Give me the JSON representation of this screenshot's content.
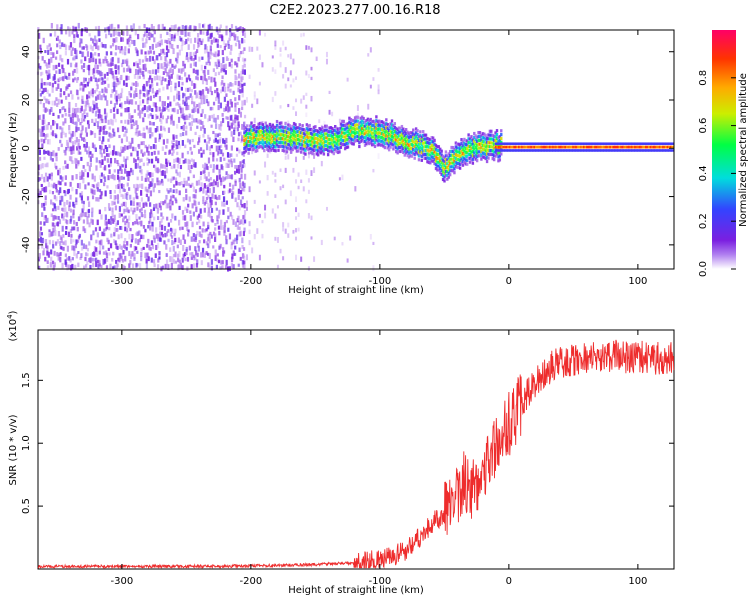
{
  "title": "C2E2.2023.277.00.16.R18",
  "colors": {
    "snr_line": "#ee2c2c",
    "spectrogram_noise": "#6a10e8",
    "spectrogram_ridge": "#00ff44",
    "axis": "#000000"
  },
  "chart_data": [
    {
      "type": "heatmap",
      "title": "C2E2.2023.277.00.16.R18",
      "xlabel": "Height of straight line (km)",
      "ylabel": "Frequency (Hz)",
      "xlim": [
        -365,
        128
      ],
      "ylim": [
        -50,
        49
      ],
      "x_ticks": [
        -300,
        -200,
        -100,
        0,
        100
      ],
      "y_ticks": [
        -40,
        -20,
        0,
        20,
        40
      ],
      "colorbar": {
        "label": "Normalized spectral amplitude",
        "range": [
          0.0,
          1.0
        ],
        "ticks": [
          0.0,
          0.2,
          0.4,
          0.6,
          0.8
        ],
        "colormap": [
          "#ffffff",
          "#7b1fe0",
          "#3344ff",
          "#00dddd",
          "#00ff44",
          "#ccee00",
          "#ffaa00",
          "#ff3300",
          "#ff0066"
        ]
      },
      "features": [
        {
          "name": "broadband noise",
          "x_range": [
            -365,
            -205
          ],
          "freq_range": [
            -50,
            49
          ],
          "amplitude": 0.1
        },
        {
          "name": "sparse noise",
          "x_range": [
            -205,
            -100
          ],
          "freq_range": [
            -50,
            49
          ],
          "amplitude": 0.05
        },
        {
          "name": "signal ridge",
          "points": [
            [
              -205,
              4
            ],
            [
              -180,
              5
            ],
            [
              -160,
              4
            ],
            [
              -140,
              3
            ],
            [
              -120,
              7
            ],
            [
              -100,
              7
            ],
            [
              -80,
              3
            ],
            [
              -60,
              0
            ],
            [
              -50,
              -8
            ],
            [
              -42,
              -4
            ],
            [
              -30,
              0
            ],
            [
              -10,
              1
            ],
            [
              0,
              1
            ],
            [
              128,
              0
            ]
          ],
          "amplitude": 0.75
        },
        {
          "name": "steady tone",
          "x_range": [
            -10,
            128
          ],
          "frequency": 0.5,
          "amplitude": 0.9
        }
      ]
    },
    {
      "type": "line",
      "xlabel": "Height of straight line (km)",
      "ylabel": "SNR (10 * v/v)",
      "y_multiplier": "(x10^4)",
      "xlim": [
        -365,
        128
      ],
      "ylim": [
        0,
        19000
      ],
      "x_ticks": [
        -300,
        -200,
        -100,
        0,
        100
      ],
      "y_ticks": [
        5000,
        10000,
        15000
      ],
      "y_tick_labels": [
        "0.5",
        "1.0",
        "1.5"
      ],
      "series": [
        {
          "x": [
            -365,
            -300,
            -250,
            -200,
            -150,
            -120,
            -100,
            -90,
            -80,
            -70,
            -60,
            -50,
            -45,
            -40,
            -35,
            -30,
            -25,
            -20,
            -15,
            -10,
            -5,
            0,
            5,
            10,
            15,
            20,
            25,
            30,
            35,
            40,
            50,
            60,
            70,
            80,
            90,
            100,
            110,
            120,
            128
          ],
          "y": [
            200,
            200,
            200,
            250,
            350,
            500,
            700,
            900,
            1500,
            2500,
            3500,
            4500,
            5200,
            6000,
            7000,
            6000,
            7000,
            8000,
            8800,
            9800,
            10500,
            11500,
            12300,
            13200,
            14000,
            14700,
            15300,
            15800,
            16200,
            16400,
            16600,
            16800,
            16700,
            17000,
            16800,
            16900,
            16700,
            16800,
            16900
          ]
        }
      ]
    }
  ]
}
